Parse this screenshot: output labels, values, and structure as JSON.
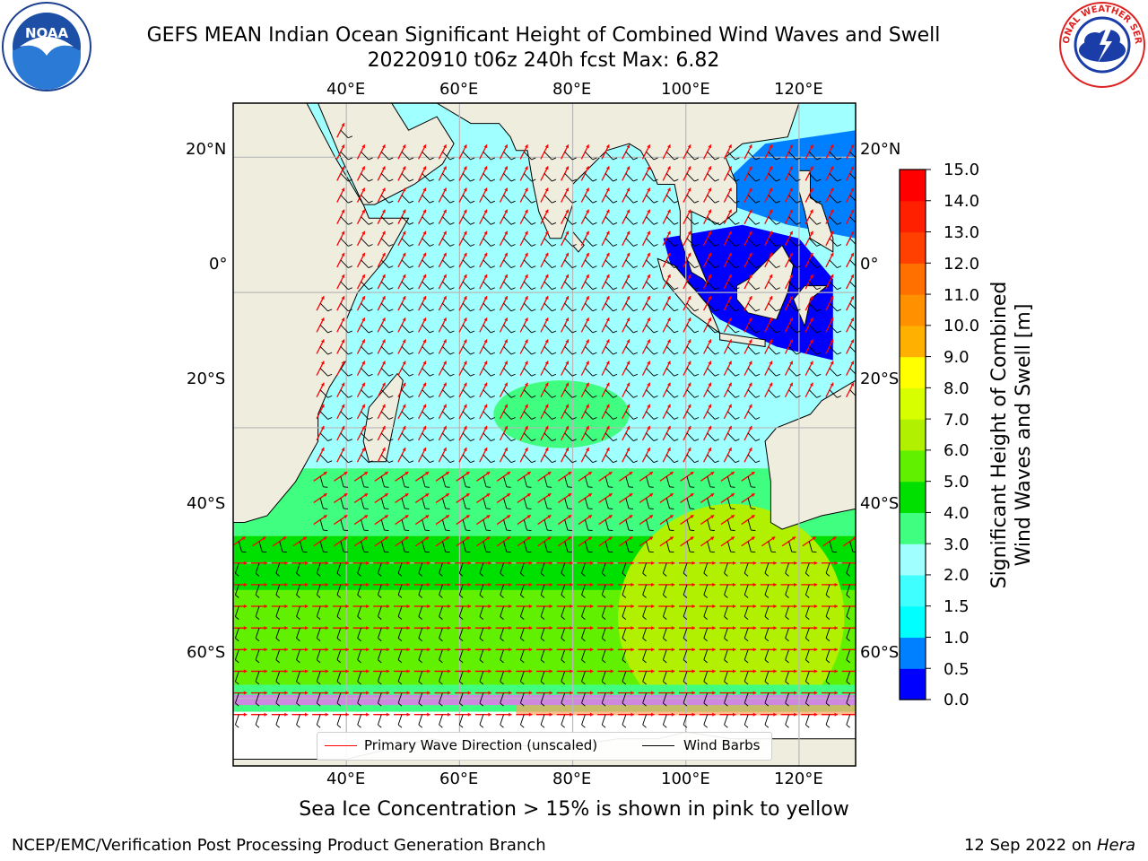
{
  "title": {
    "line1": "GEFS MEAN Indian Ocean Significant Height of Combined Wind Waves and Swell",
    "line2": "20220910 t06z 240h fcst   Max: 6.82"
  },
  "logos": {
    "left": {
      "text": "NOAA",
      "icon": "noaa-logo-icon"
    },
    "right": {
      "text": "NATIONAL WEATHER SERVICE",
      "icon": "nws-logo-icon"
    }
  },
  "map": {
    "projection": "equirectangular",
    "lon_range": [
      20,
      130
    ],
    "lat_range": [
      -70,
      28
    ],
    "top_lon_ticks": [
      "40°E",
      "60°E",
      "80°E",
      "100°E",
      "120°E"
    ],
    "bottom_lon_ticks": [
      "40°E",
      "60°E",
      "80°E",
      "100°E",
      "120°E"
    ],
    "left_lat_ticks": [
      "20°N",
      "0°",
      "20°S",
      "40°S",
      "60°S"
    ],
    "right_lat_ticks": [
      "20°N",
      "0°",
      "20°S",
      "40°S",
      "60°S"
    ],
    "colors": {
      "land": "#efedde",
      "grid": "#b8b8b8",
      "wave_arrow": "#ff0000",
      "wind_barb": "#000000"
    }
  },
  "colorbar": {
    "title": "Significant Height of Combined Wind Waves and Swell [m]",
    "title_line1": "Significant Height of Combined",
    "title_line2": "Wind Waves and Swell [m]",
    "ticks": [
      "15.0",
      "14.0",
      "13.0",
      "12.0",
      "11.0",
      "10.0",
      "9.0",
      "8.0",
      "7.0",
      "6.0",
      "5.0",
      "4.0",
      "3.0",
      "2.0",
      "1.5",
      "1.0",
      "0.5",
      "0.0"
    ],
    "colors": [
      "#0000ff",
      "#0080ff",
      "#00ffff",
      "#40ffff",
      "#a0ffff",
      "#40ff80",
      "#00e000",
      "#60f000",
      "#b0f000",
      "#d8ff00",
      "#ffff00",
      "#ffb000",
      "#ff9000",
      "#ff7000",
      "#ff4000",
      "#ff2000",
      "#ff0000"
    ]
  },
  "legend": {
    "wave_label": "Primary Wave Direction (unscaled)",
    "wind_label": "Wind Barbs"
  },
  "note": "Sea Ice Concentration > 15% is shown in pink to yellow",
  "credit": "NCEP/EMC/Verification Post Processing Product Generation Branch",
  "stamp": {
    "date": "12 Sep 2022 on",
    "host": "Hera"
  }
}
